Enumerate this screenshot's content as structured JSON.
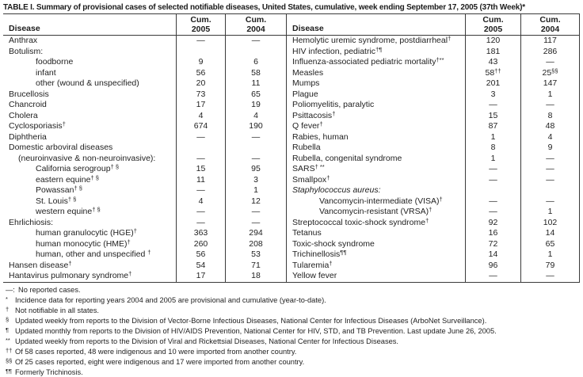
{
  "title": "TABLE I. Summary of provisional cases of selected notifiable diseases, United States, cumulative, week ending September 17, 2005 (37th Week)*",
  "header": {
    "disease": "Disease",
    "cum": "Cum.",
    "y2005": "2005",
    "y2004": "2004"
  },
  "no_cases_symbol": "—",
  "table": {
    "left_rows": [
      {
        "label": "Anthrax",
        "indent": 0,
        "c2005": "—",
        "c2004": "—"
      },
      {
        "label": "Botulism:",
        "indent": 0,
        "c2005": "",
        "c2004": ""
      },
      {
        "label": "foodborne",
        "indent": 2,
        "c2005": "9",
        "c2004": "6"
      },
      {
        "label": "infant",
        "indent": 2,
        "c2005": "56",
        "c2004": "58"
      },
      {
        "label": "other (wound & unspecified)",
        "indent": 2,
        "c2005": "20",
        "c2004": "11"
      },
      {
        "label": "Brucellosis",
        "indent": 0,
        "c2005": "73",
        "c2004": "65"
      },
      {
        "label": "Chancroid",
        "indent": 0,
        "c2005": "17",
        "c2004": "19"
      },
      {
        "label": "Cholera",
        "indent": 0,
        "c2005": "4",
        "c2004": "4"
      },
      {
        "label": "Cyclosporiasis",
        "sup": "†",
        "indent": 0,
        "c2005": "674",
        "c2004": "190"
      },
      {
        "label": "Diphtheria",
        "indent": 0,
        "c2005": "—",
        "c2004": "—"
      },
      {
        "label": "Domestic arboviral diseases",
        "indent": 0,
        "c2005": "",
        "c2004": ""
      },
      {
        "label": "(neuroinvasive & non-neuroinvasive):",
        "indent": 1,
        "c2005": "—",
        "c2004": "—"
      },
      {
        "label": "California serogroup",
        "sup": "† §",
        "indent": 2,
        "c2005": "15",
        "c2004": "95"
      },
      {
        "label": "eastern equine",
        "sup": "† §",
        "indent": 2,
        "c2005": "11",
        "c2004": "3"
      },
      {
        "label": "Powassan",
        "sup": "† §",
        "indent": 2,
        "c2005": "—",
        "c2004": "1"
      },
      {
        "label": "St. Louis",
        "sup": "† §",
        "indent": 2,
        "c2005": "4",
        "c2004": "12"
      },
      {
        "label": "western equine",
        "sup": "† §",
        "indent": 2,
        "c2005": "—",
        "c2004": "—"
      },
      {
        "label": "Ehrlichiosis:",
        "indent": 0,
        "c2005": "—",
        "c2004": "—"
      },
      {
        "label": "human granulocytic (HGE)",
        "sup": "†",
        "indent": 2,
        "c2005": "363",
        "c2004": "294"
      },
      {
        "label": "human monocytic (HME)",
        "sup": "†",
        "indent": 2,
        "c2005": "260",
        "c2004": "208"
      },
      {
        "label": "human, other and unspecified ",
        "sup": "†",
        "indent": 2,
        "c2005": "56",
        "c2004": "53"
      },
      {
        "label": "Hansen disease",
        "sup": "†",
        "indent": 0,
        "c2005": "54",
        "c2004": "71"
      },
      {
        "label": "Hantavirus pulmonary syndrome",
        "sup": "†",
        "indent": 0,
        "c2005": "17",
        "c2004": "18"
      }
    ],
    "right_rows": [
      {
        "label": "Hemolytic uremic syndrome, postdiarrheal",
        "sup": "†",
        "indent": 0,
        "c2005": "120",
        "c2004": "117"
      },
      {
        "label": "HIV infection, pediatric",
        "sup": "†¶",
        "indent": 0,
        "c2005": "181",
        "c2004": "286"
      },
      {
        "label": "Influenza-associated pediatric mortality",
        "sup": "†**",
        "indent": 0,
        "c2005": "43",
        "c2004": "—"
      },
      {
        "label": "Measles",
        "indent": 0,
        "c2005": "58",
        "c2005_sup": "††",
        "c2004": "25",
        "c2004_sup": "§§"
      },
      {
        "label": "Mumps",
        "indent": 0,
        "c2005": "201",
        "c2004": "147"
      },
      {
        "label": "Plague",
        "indent": 0,
        "c2005": "3",
        "c2004": "1"
      },
      {
        "label": "Poliomyelitis, paralytic",
        "indent": 0,
        "c2005": "—",
        "c2004": "—"
      },
      {
        "label": "Psittacosis",
        "sup": "†",
        "indent": 0,
        "c2005": "15",
        "c2004": "8"
      },
      {
        "label": "Q fever",
        "sup": "†",
        "indent": 0,
        "c2005": "87",
        "c2004": "48"
      },
      {
        "label": "Rabies, human",
        "indent": 0,
        "c2005": "1",
        "c2004": "4"
      },
      {
        "label": "Rubella",
        "indent": 0,
        "c2005": "8",
        "c2004": "9"
      },
      {
        "label": "Rubella, congenital syndrome",
        "indent": 0,
        "c2005": "1",
        "c2004": "—"
      },
      {
        "label": "SARS",
        "sup": "† **",
        "indent": 0,
        "c2005": "—",
        "c2004": "—"
      },
      {
        "label": "Smallpox",
        "sup": "†",
        "indent": 0,
        "c2005": "—",
        "c2004": "—"
      },
      {
        "label": "Staphylococcus aureus:",
        "italic": true,
        "indent": 0,
        "c2005": "",
        "c2004": ""
      },
      {
        "label": "Vancomycin-intermediate (VISA)",
        "sup": "†",
        "indent": 2,
        "c2005": "—",
        "c2004": "—"
      },
      {
        "label": "Vancomycin-resistant (VRSA)",
        "sup": "†",
        "indent": 2,
        "c2005": "—",
        "c2004": "1"
      },
      {
        "label": "Streptococcal toxic-shock syndrome",
        "sup": "†",
        "indent": 0,
        "c2005": "92",
        "c2004": "102"
      },
      {
        "label": "Tetanus",
        "indent": 0,
        "c2005": "16",
        "c2004": "14"
      },
      {
        "label": "Toxic-shock syndrome",
        "indent": 0,
        "c2005": "72",
        "c2004": "65"
      },
      {
        "label": "Trichinellosis",
        "sup": "¶¶",
        "indent": 0,
        "c2005": "14",
        "c2004": "1"
      },
      {
        "label": "Tularemia",
        "sup": "†",
        "indent": 0,
        "c2005": "96",
        "c2004": "79"
      },
      {
        "label": "Yellow fever",
        "indent": 0,
        "c2005": "—",
        "c2004": "—"
      }
    ]
  },
  "footnotes": [
    {
      "marker": "—:",
      "text": "No reported cases."
    },
    {
      "marker": "*",
      "text": "Incidence data for reporting years 2004 and 2005 are provisional and cumulative (year-to-date)."
    },
    {
      "marker": "†",
      "text": "Not notifiable in all states."
    },
    {
      "marker": "§",
      "text": "Updated weekly from reports to the Division of Vector-Borne Infectious Diseases, National Center for Infectious Diseases (ArboNet Surveillance)."
    },
    {
      "marker": "¶",
      "text": "Updated monthly from reports to the Division of HIV/AIDS Prevention, National Center for HIV, STD, and TB Prevention. Last update June 26, 2005."
    },
    {
      "marker": "**",
      "text": "Updated weekly from reports to the Division of Viral and Rickettsial Diseases, National Center for Infectious Diseases."
    },
    {
      "marker": "††",
      "text": "Of 58 cases reported, 48 were indigenous and 10 were imported from another country."
    },
    {
      "marker": "§§",
      "text": "Of 25 cases reported, eight were indigenous and 17 were imported from another country."
    },
    {
      "marker": "¶¶",
      "text": "Formerly Trichinosis."
    }
  ]
}
